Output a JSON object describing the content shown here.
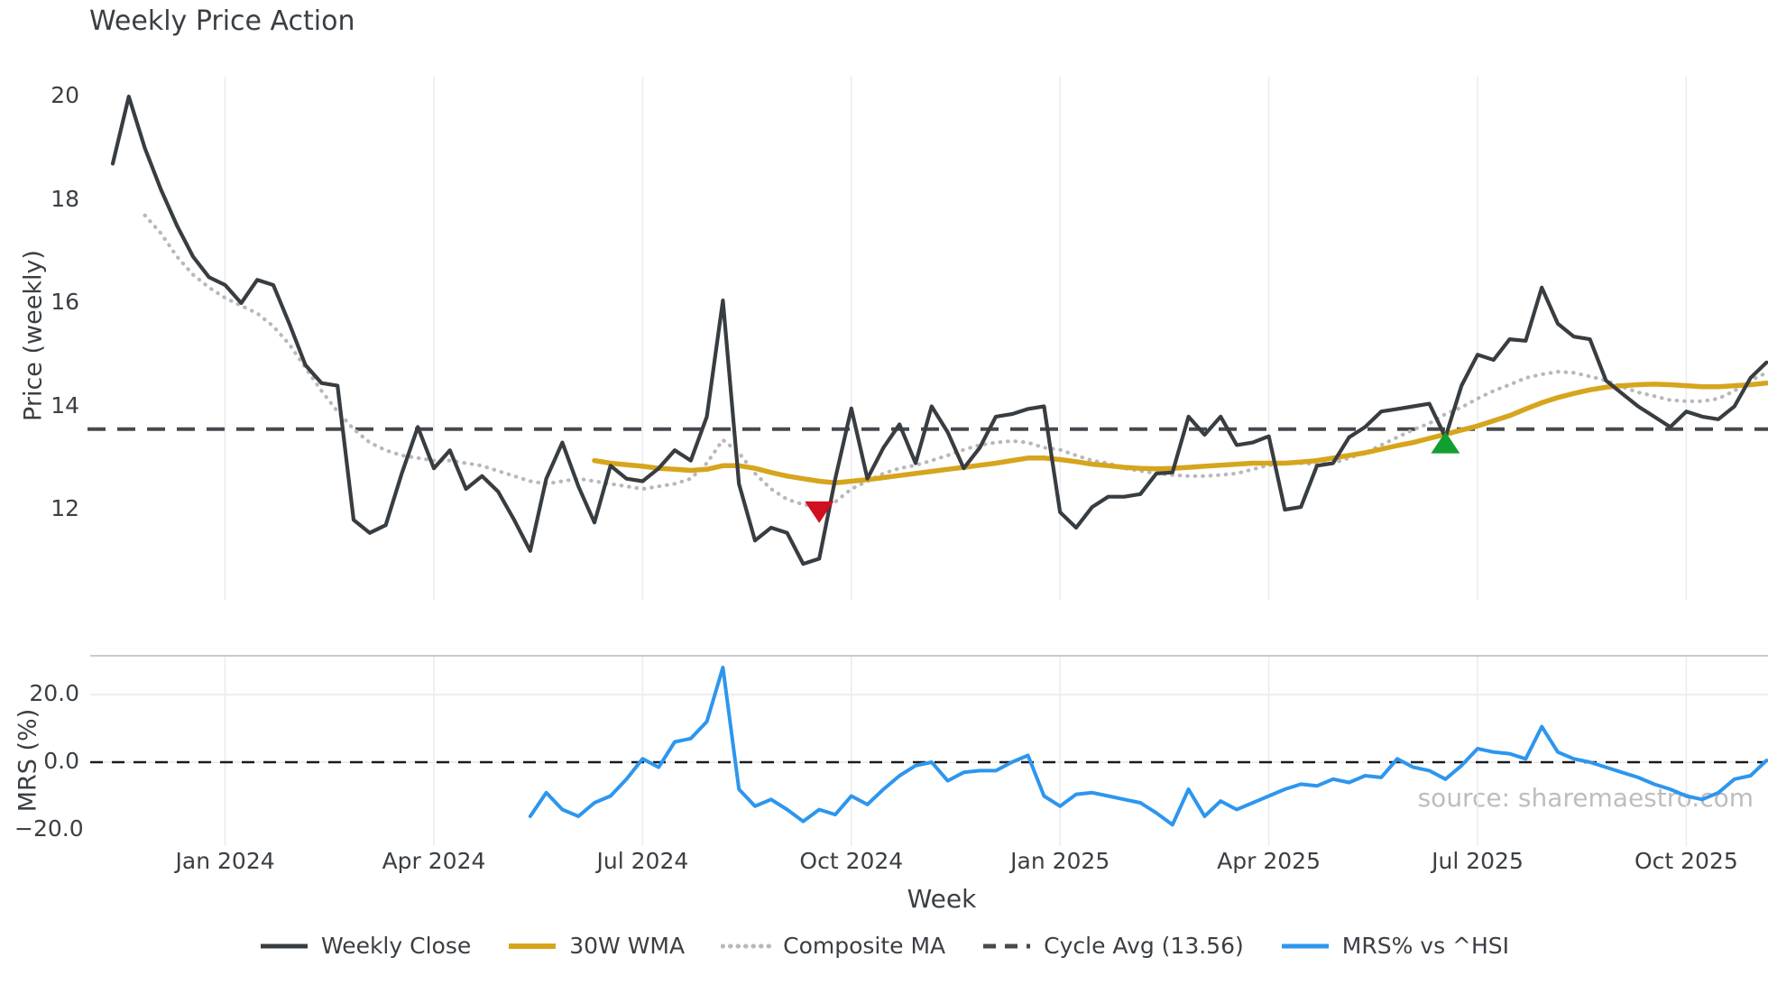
{
  "title": "Weekly Price Action",
  "watermark": "source: sharemaestro.com",
  "legend_entries": [
    "Weekly Close",
    "30W WMA",
    "Composite MA",
    "Cycle Avg (13.56)",
    "MRS% vs ^HSI"
  ],
  "colors": {
    "weekly_close": "#383d41",
    "wma30": "#d6a51d",
    "composite": "#b8b8bc",
    "cycle_avg": "#46494d",
    "mrs": "#2d96ee",
    "sell_marker": "#d20f1f",
    "buy_marker": "#129e30",
    "gridline": "#ebebf2",
    "spine": "#c9c9ce",
    "zero_line": "#1a1a1a",
    "text": "#3a3f44",
    "watermark": "#bdbdbd"
  },
  "chart_data": {
    "type": "line",
    "x_axis": {
      "label": "Week",
      "tick_labels": [
        "Jan 2024",
        "Apr 2024",
        "Jul 2024",
        "Oct 2024",
        "Jan 2025",
        "Apr 2025",
        "Jul 2025",
        "Oct 2025"
      ],
      "tick_weeks": [
        7,
        20,
        33,
        46,
        59,
        72,
        85,
        98
      ],
      "weeks_total": 104
    },
    "price_panel": {
      "label": "Price (weekly)",
      "ytick_labels": [
        "20",
        "18",
        "16",
        "14",
        "12"
      ],
      "ytick_values": [
        20,
        18,
        16,
        14,
        12
      ],
      "ylim": [
        10.25,
        20.4
      ],
      "cycle_avg": 13.56
    },
    "mrs_panel": {
      "label": "MRS (%)",
      "ytick_labels": [
        "20.0",
        "0.0",
        "−20.0"
      ],
      "ytick_values": [
        20,
        0,
        -20
      ],
      "ylim": [
        -25,
        31.5
      ],
      "zero_line": 0
    },
    "series": [
      {
        "name": "Weekly Close",
        "key": "weekly_close",
        "panel": "price",
        "color": "#383d41",
        "style": "solid",
        "start_week": 0,
        "values": [
          18.7,
          20.0,
          19.0,
          18.2,
          17.5,
          16.9,
          16.5,
          16.35,
          16.0,
          16.45,
          16.35,
          15.6,
          14.8,
          14.45,
          14.4,
          11.8,
          11.55,
          11.7,
          12.7,
          13.6,
          12.8,
          13.15,
          12.4,
          12.65,
          12.35,
          11.8,
          11.2,
          12.6,
          13.3,
          12.45,
          11.75,
          12.85,
          12.6,
          12.55,
          12.8,
          13.15,
          12.95,
          13.8,
          16.05,
          12.5,
          11.4,
          11.65,
          11.55,
          10.95,
          11.05,
          12.6,
          13.96,
          12.6,
          13.2,
          13.65,
          12.9,
          14.0,
          13.5,
          12.8,
          13.2,
          13.8,
          13.85,
          13.95,
          14.0,
          11.95,
          11.65,
          12.05,
          12.25,
          12.25,
          12.3,
          12.7,
          12.72,
          13.8,
          13.45,
          13.8,
          13.25,
          13.3,
          13.42,
          12.0,
          12.05,
          12.85,
          12.9,
          13.4,
          13.6,
          13.9,
          13.95,
          14.0,
          14.05,
          13.4,
          14.4,
          15.0,
          14.9,
          15.3,
          15.27,
          16.3,
          15.6,
          15.35,
          15.3,
          14.5,
          14.25,
          14.0,
          13.8,
          13.6,
          13.9,
          13.8,
          13.75,
          14.0,
          14.55,
          14.85
        ]
      },
      {
        "name": "30W WMA",
        "key": "wma30",
        "panel": "price",
        "color": "#d6a51d",
        "style": "solid",
        "start_week": 30,
        "values": [
          12.95,
          12.9,
          12.87,
          12.84,
          12.8,
          12.78,
          12.76,
          12.78,
          12.85,
          12.85,
          12.8,
          12.72,
          12.65,
          12.6,
          12.55,
          12.52,
          12.55,
          12.58,
          12.62,
          12.66,
          12.7,
          12.74,
          12.78,
          12.82,
          12.86,
          12.9,
          12.95,
          13.0,
          13.0,
          12.97,
          12.93,
          12.88,
          12.85,
          12.82,
          12.8,
          12.79,
          12.8,
          12.82,
          12.84,
          12.86,
          12.88,
          12.9,
          12.9,
          12.9,
          12.92,
          12.95,
          13.0,
          13.05,
          13.1,
          13.17,
          13.24,
          13.3,
          13.38,
          13.46,
          13.54,
          13.62,
          13.72,
          13.82,
          13.95,
          14.07,
          14.17,
          14.25,
          14.32,
          14.37,
          14.4,
          14.42,
          14.43,
          14.42,
          14.4,
          14.38,
          14.38,
          14.4,
          14.42,
          14.45
        ]
      },
      {
        "name": "Composite MA",
        "key": "composite",
        "panel": "price",
        "color": "#b8b8bc",
        "style": "dotted",
        "start_week": 2,
        "values": [
          17.7,
          17.35,
          16.9,
          16.55,
          16.3,
          16.1,
          15.95,
          15.8,
          15.55,
          15.2,
          14.75,
          14.3,
          13.9,
          13.56,
          13.3,
          13.15,
          13.05,
          13.0,
          12.95,
          12.95,
          12.9,
          12.85,
          12.75,
          12.65,
          12.55,
          12.5,
          12.55,
          12.6,
          12.55,
          12.5,
          12.45,
          12.4,
          12.45,
          12.5,
          12.6,
          12.9,
          13.35,
          13.1,
          12.7,
          12.4,
          12.2,
          12.1,
          12.05,
          12.15,
          12.4,
          12.55,
          12.7,
          12.8,
          12.86,
          12.95,
          13.05,
          13.16,
          13.25,
          13.3,
          13.33,
          13.3,
          13.2,
          13.16,
          13.05,
          12.95,
          12.9,
          12.8,
          12.75,
          12.7,
          12.67,
          12.65,
          12.65,
          12.67,
          12.7,
          12.78,
          12.86,
          12.9,
          12.9,
          12.88,
          12.9,
          13.0,
          13.1,
          13.25,
          13.4,
          13.55,
          13.67,
          13.85,
          13.98,
          14.15,
          14.3,
          14.42,
          14.55,
          14.62,
          14.67,
          14.65,
          14.58,
          14.5,
          14.38,
          14.27,
          14.2,
          14.12,
          14.1,
          14.1,
          14.15,
          14.3,
          14.5,
          14.65
        ]
      },
      {
        "name": "Cycle Avg (13.56)",
        "key": "cycle_avg",
        "panel": "price",
        "color": "#46494d",
        "style": "dashed",
        "value": 13.56
      },
      {
        "name": "MRS% vs ^HSI",
        "key": "mrs",
        "panel": "mrs",
        "color": "#2d96ee",
        "style": "solid",
        "start_week": 26,
        "values": [
          -16,
          -9,
          -14,
          -16,
          -12,
          -10,
          -5,
          1,
          -1.5,
          6,
          7,
          12,
          28,
          -8,
          -13,
          -11,
          -14,
          -17.5,
          -14,
          -15.5,
          -10,
          -12.5,
          -8,
          -4,
          -1,
          0,
          -5.5,
          -3,
          -2.5,
          -2.5,
          0,
          2,
          -10,
          -13,
          -9.5,
          -9,
          -10,
          -11,
          -12,
          -15,
          -18.5,
          -8,
          -16,
          -11.5,
          -14,
          -12,
          -10,
          -8,
          -6.5,
          -7,
          -5,
          -6,
          -4,
          -4.5,
          1,
          -1.5,
          -2.5,
          -5,
          -1,
          4,
          3,
          2.5,
          1,
          10.5,
          3,
          1,
          0,
          -1.5,
          -3,
          -4.5,
          -6.5,
          -8,
          -10,
          -11,
          -9,
          -5,
          -4,
          0.5
        ]
      }
    ],
    "markers": [
      {
        "type": "sell",
        "shape": "triangle-down",
        "week": 44,
        "price": 11.95,
        "color": "#d20f1f"
      },
      {
        "type": "buy",
        "shape": "triangle-up",
        "week": 83,
        "price": 13.3,
        "color": "#129e30"
      }
    ]
  }
}
